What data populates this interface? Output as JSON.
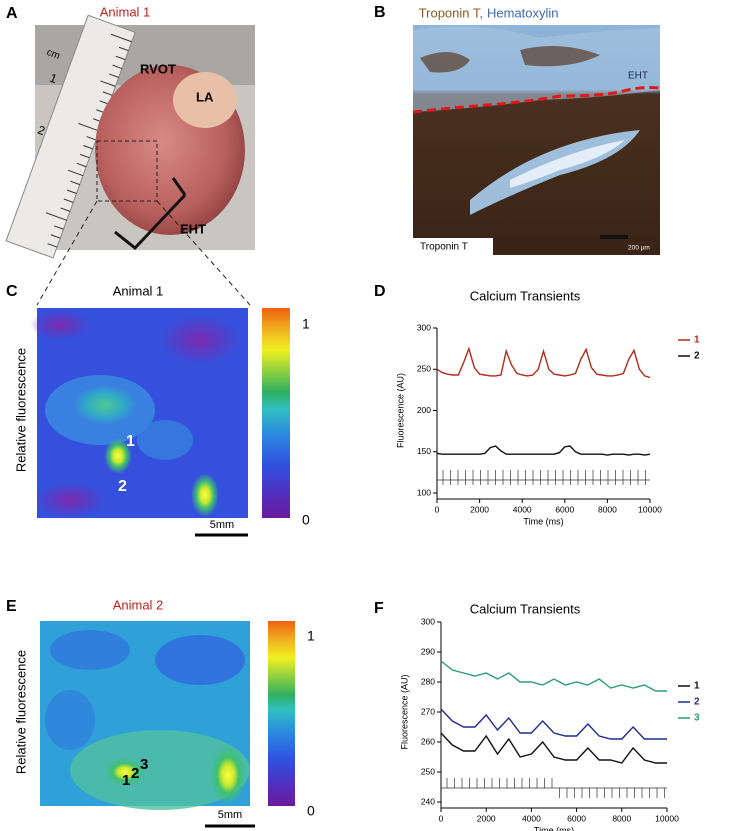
{
  "panels": {
    "A": {
      "letter": "A",
      "title": "Animal 1",
      "labels": [
        "RVOT",
        "LA",
        "EHT"
      ],
      "ruler": [
        "cm",
        "1",
        "2"
      ]
    },
    "B": {
      "letter": "B",
      "title_stain1": "Troponin T,",
      "title_stain2": "Hematoxylin",
      "labels": [
        "EHT",
        "Troponin T",
        "200 µm"
      ]
    },
    "C": {
      "letter": "C",
      "title": "Animal 1",
      "ylabel": "Relative fluorescence",
      "colorbar": [
        1,
        0
      ],
      "points": [
        "1",
        "2"
      ],
      "scale": "5mm"
    },
    "E": {
      "letter": "E",
      "title": "Animal 2",
      "ylabel": "Relative fluorescence",
      "colorbar": [
        1,
        0
      ],
      "points": [
        "1",
        "2",
        "3"
      ],
      "scale": "5mm"
    }
  },
  "chart_data": [
    {
      "type": "line",
      "letter": "D",
      "title": "Calcium Transients",
      "xlabel": "Time (ms)",
      "ylabel": "Fluorescence (AU)",
      "x": [
        0,
        250,
        500,
        750,
        1000,
        1250,
        1500,
        1750,
        2000,
        2250,
        2500,
        2750,
        3000,
        3250,
        3500,
        3750,
        4000,
        4250,
        4500,
        4750,
        5000,
        5250,
        5500,
        5750,
        6000,
        6250,
        6500,
        6750,
        7000,
        7250,
        7500,
        7750,
        8000,
        8250,
        8500,
        8750,
        9000,
        9250,
        9500,
        9750,
        10000
      ],
      "xlim": [
        0,
        10000
      ],
      "xticks": [
        0,
        2000,
        4000,
        6000,
        8000,
        10000
      ],
      "ylim": [
        100,
        300
      ],
      "yticks": [
        100,
        150,
        200,
        250,
        300
      ],
      "series": [
        {
          "name": "1",
          "color": "#b22a1a",
          "values": [
            250,
            246,
            244,
            243,
            243,
            258,
            275,
            252,
            244,
            243,
            242,
            242,
            243,
            272,
            255,
            245,
            243,
            242,
            243,
            250,
            272,
            250,
            244,
            243,
            242,
            243,
            245,
            262,
            274,
            252,
            244,
            243,
            242,
            242,
            243,
            245,
            262,
            273,
            250,
            242,
            240
          ]
        },
        {
          "name": "2",
          "color": "#111111",
          "values": [
            148,
            147,
            147,
            147,
            147,
            147,
            147,
            147,
            147,
            148,
            155,
            157,
            151,
            147,
            147,
            147,
            147,
            147,
            147,
            147,
            147,
            147,
            147,
            149,
            156,
            157,
            150,
            147,
            147,
            147,
            147,
            147,
            146,
            147,
            147,
            147,
            146,
            147,
            147,
            146,
            147
          ]
        }
      ]
    },
    {
      "type": "line",
      "letter": "F",
      "title": "Calcium Transients",
      "xlabel": "Time (ms)",
      "ylabel": "Fluorescence (AU)",
      "x": [
        0,
        500,
        1000,
        1500,
        2000,
        2500,
        3000,
        3500,
        4000,
        4500,
        5000,
        5500,
        6000,
        6500,
        7000,
        7500,
        8000,
        8500,
        9000,
        9500,
        10000
      ],
      "xlim": [
        0,
        10000
      ],
      "xticks": [
        0,
        2000,
        4000,
        6000,
        8000,
        10000
      ],
      "ylim": [
        240,
        300
      ],
      "yticks": [
        240,
        250,
        260,
        270,
        280,
        290,
        300
      ],
      "series": [
        {
          "name": "1",
          "color": "#111111",
          "values": [
            263,
            259,
            257,
            257,
            262,
            256,
            261,
            255,
            256,
            260,
            255,
            254,
            254,
            258,
            254,
            254,
            253,
            258,
            254,
            253,
            253
          ]
        },
        {
          "name": "2",
          "color": "#1f2d8f",
          "values": [
            271,
            267,
            265,
            265,
            269,
            264,
            268,
            263,
            263,
            267,
            263,
            262,
            262,
            266,
            262,
            261,
            261,
            265,
            261,
            261,
            261
          ]
        },
        {
          "name": "3",
          "color": "#2a9d7c",
          "values": [
            287,
            284,
            283,
            282,
            283,
            281,
            283,
            280,
            280,
            279,
            281,
            279,
            280,
            279,
            281,
            278,
            279,
            278,
            279,
            277,
            277
          ]
        }
      ]
    }
  ]
}
